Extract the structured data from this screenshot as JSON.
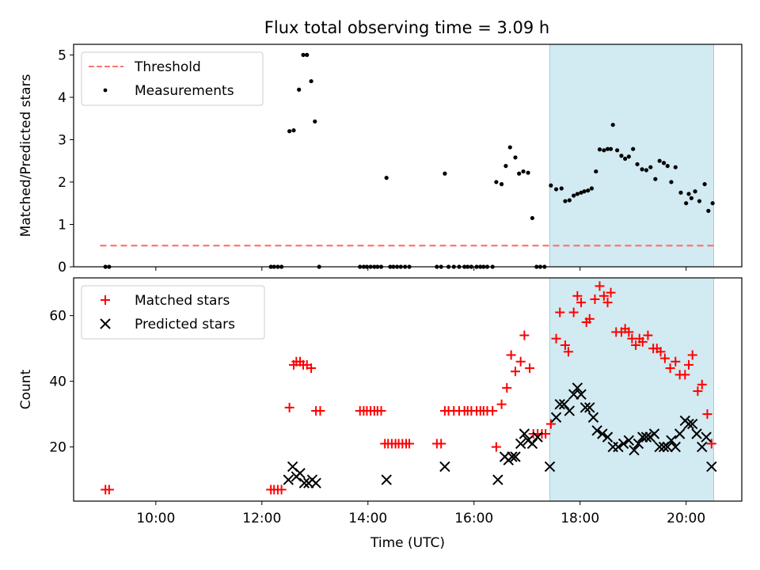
{
  "figure": {
    "title": "Flux total observing time = 3.09 h"
  },
  "colors": {
    "threshold": "#ff7373",
    "measurements": "#000000",
    "matched": "#ff0000",
    "predicted": "#000000",
    "highlight_fill": "#add8e6",
    "highlight_edge": "#9fcfdd"
  },
  "chart_data": [
    {
      "type": "scatter",
      "panel": "top",
      "ylabel": "Matched/Predicted stars",
      "xlabel": "",
      "x_unit": "hours UTC",
      "xlim": [
        8.45,
        21.05
      ],
      "ylim": [
        0,
        5.25
      ],
      "yticks": [
        0,
        1,
        2,
        3,
        4,
        5
      ],
      "highlight_span": [
        17.43,
        20.52
      ],
      "legend_position": "upper left",
      "threshold": {
        "name": "Threshold",
        "value": 0.5,
        "x_range": [
          8.95,
          20.55
        ],
        "style": "dashed"
      },
      "series": [
        {
          "name": "Measurements",
          "marker": "dot",
          "points": [
            [
              9.05,
              0
            ],
            [
              9.12,
              0
            ],
            [
              12.17,
              0
            ],
            [
              12.23,
              0
            ],
            [
              12.3,
              0
            ],
            [
              12.37,
              0
            ],
            [
              12.52,
              3.2
            ],
            [
              12.6,
              3.22
            ],
            [
              12.7,
              4.18
            ],
            [
              12.78,
              5.0
            ],
            [
              12.85,
              5.0
            ],
            [
              12.93,
              4.38
            ],
            [
              13.0,
              3.43
            ],
            [
              13.08,
              0
            ],
            [
              13.85,
              0
            ],
            [
              13.92,
              0
            ],
            [
              13.98,
              0
            ],
            [
              14.05,
              0
            ],
            [
              14.12,
              0
            ],
            [
              14.18,
              0
            ],
            [
              14.25,
              0
            ],
            [
              14.35,
              2.1
            ],
            [
              14.42,
              0
            ],
            [
              14.48,
              0
            ],
            [
              14.55,
              0
            ],
            [
              14.62,
              0
            ],
            [
              14.7,
              0
            ],
            [
              14.78,
              0
            ],
            [
              15.3,
              0
            ],
            [
              15.38,
              0
            ],
            [
              15.45,
              2.2
            ],
            [
              15.52,
              0
            ],
            [
              15.62,
              0
            ],
            [
              15.72,
              0
            ],
            [
              15.82,
              0
            ],
            [
              15.88,
              0
            ],
            [
              15.95,
              0
            ],
            [
              16.05,
              0
            ],
            [
              16.12,
              0
            ],
            [
              16.18,
              0
            ],
            [
              16.25,
              0
            ],
            [
              16.35,
              0
            ],
            [
              16.42,
              2.0
            ],
            [
              16.52,
              1.95
            ],
            [
              16.6,
              2.38
            ],
            [
              16.68,
              2.82
            ],
            [
              16.78,
              2.58
            ],
            [
              16.85,
              2.2
            ],
            [
              16.93,
              2.25
            ],
            [
              17.02,
              2.22
            ],
            [
              17.1,
              1.15
            ],
            [
              17.18,
              0
            ],
            [
              17.25,
              0
            ],
            [
              17.33,
              0
            ],
            [
              17.45,
              1.92
            ],
            [
              17.55,
              1.83
            ],
            [
              17.65,
              1.85
            ],
            [
              17.72,
              1.55
            ],
            [
              17.8,
              1.57
            ],
            [
              17.88,
              1.68
            ],
            [
              17.95,
              1.72
            ],
            [
              18.02,
              1.75
            ],
            [
              18.08,
              1.78
            ],
            [
              18.15,
              1.8
            ],
            [
              18.22,
              1.85
            ],
            [
              18.3,
              2.25
            ],
            [
              18.37,
              2.77
            ],
            [
              18.45,
              2.75
            ],
            [
              18.52,
              2.78
            ],
            [
              18.58,
              2.78
            ],
            [
              18.62,
              3.35
            ],
            [
              18.7,
              2.75
            ],
            [
              18.78,
              2.62
            ],
            [
              18.85,
              2.55
            ],
            [
              18.92,
              2.6
            ],
            [
              19.0,
              2.78
            ],
            [
              19.08,
              2.42
            ],
            [
              19.17,
              2.3
            ],
            [
              19.25,
              2.28
            ],
            [
              19.33,
              2.35
            ],
            [
              19.42,
              2.07
            ],
            [
              19.5,
              2.5
            ],
            [
              19.58,
              2.45
            ],
            [
              19.65,
              2.38
            ],
            [
              19.72,
              2.0
            ],
            [
              19.8,
              2.35
            ],
            [
              19.9,
              1.75
            ],
            [
              20.0,
              1.5
            ],
            [
              20.05,
              1.72
            ],
            [
              20.1,
              1.62
            ],
            [
              20.17,
              1.78
            ],
            [
              20.25,
              1.55
            ],
            [
              20.35,
              1.95
            ],
            [
              20.42,
              1.32
            ],
            [
              20.5,
              1.5
            ]
          ]
        }
      ]
    },
    {
      "type": "scatter",
      "panel": "bottom",
      "ylabel": "Count",
      "xlabel": "Time (UTC)",
      "x_unit": "hours UTC",
      "xlim": [
        8.45,
        21.05
      ],
      "ylim": [
        3.5,
        71.5
      ],
      "yticks": [
        20,
        40,
        60
      ],
      "xticks": [
        10,
        12,
        14,
        16,
        18,
        20
      ],
      "xtick_labels": [
        "10:00",
        "12:00",
        "14:00",
        "16:00",
        "18:00",
        "20:00"
      ],
      "highlight_span": [
        17.43,
        20.52
      ],
      "legend_position": "upper left",
      "series": [
        {
          "name": "Matched stars",
          "marker": "plus",
          "points": [
            [
              9.05,
              7
            ],
            [
              9.12,
              7
            ],
            [
              12.17,
              7
            ],
            [
              12.23,
              7
            ],
            [
              12.3,
              7
            ],
            [
              12.37,
              7
            ],
            [
              12.52,
              32
            ],
            [
              12.6,
              45
            ],
            [
              12.65,
              46
            ],
            [
              12.72,
              46
            ],
            [
              12.78,
              45
            ],
            [
              12.85,
              45
            ],
            [
              12.93,
              44
            ],
            [
              13.02,
              31
            ],
            [
              13.1,
              31
            ],
            [
              13.85,
              31
            ],
            [
              13.92,
              31
            ],
            [
              13.98,
              31
            ],
            [
              14.05,
              31
            ],
            [
              14.12,
              31
            ],
            [
              14.18,
              31
            ],
            [
              14.25,
              31
            ],
            [
              14.32,
              21
            ],
            [
              14.38,
              21
            ],
            [
              14.45,
              21
            ],
            [
              14.52,
              21
            ],
            [
              14.58,
              21
            ],
            [
              14.65,
              21
            ],
            [
              14.72,
              21
            ],
            [
              14.78,
              21
            ],
            [
              15.3,
              21
            ],
            [
              15.38,
              21
            ],
            [
              15.45,
              31
            ],
            [
              15.52,
              31
            ],
            [
              15.62,
              31
            ],
            [
              15.72,
              31
            ],
            [
              15.82,
              31
            ],
            [
              15.88,
              31
            ],
            [
              15.95,
              31
            ],
            [
              16.05,
              31
            ],
            [
              16.12,
              31
            ],
            [
              16.18,
              31
            ],
            [
              16.25,
              31
            ],
            [
              16.35,
              31
            ],
            [
              16.42,
              20
            ],
            [
              16.52,
              33
            ],
            [
              16.62,
              38
            ],
            [
              16.7,
              48
            ],
            [
              16.78,
              43
            ],
            [
              16.88,
              46
            ],
            [
              16.95,
              54
            ],
            [
              17.05,
              44
            ],
            [
              17.12,
              24
            ],
            [
              17.2,
              24
            ],
            [
              17.28,
              24
            ],
            [
              17.35,
              24
            ],
            [
              17.45,
              27
            ],
            [
              17.55,
              53
            ],
            [
              17.62,
              61
            ],
            [
              17.72,
              51
            ],
            [
              17.78,
              49
            ],
            [
              17.88,
              61
            ],
            [
              17.95,
              66
            ],
            [
              18.02,
              64
            ],
            [
              18.12,
              58
            ],
            [
              18.18,
              59
            ],
            [
              18.28,
              65
            ],
            [
              18.37,
              69
            ],
            [
              18.45,
              66
            ],
            [
              18.52,
              64
            ],
            [
              18.58,
              67
            ],
            [
              18.68,
              55
            ],
            [
              18.78,
              55
            ],
            [
              18.85,
              56
            ],
            [
              18.92,
              55
            ],
            [
              18.98,
              53
            ],
            [
              19.05,
              51
            ],
            [
              19.12,
              53
            ],
            [
              19.18,
              52
            ],
            [
              19.28,
              54
            ],
            [
              19.38,
              50
            ],
            [
              19.45,
              50
            ],
            [
              19.52,
              49
            ],
            [
              19.6,
              47
            ],
            [
              19.7,
              44
            ],
            [
              19.8,
              46
            ],
            [
              19.88,
              42
            ],
            [
              19.98,
              42
            ],
            [
              20.05,
              45
            ],
            [
              20.12,
              48
            ],
            [
              20.22,
              37
            ],
            [
              20.3,
              39
            ],
            [
              20.4,
              30
            ],
            [
              20.48,
              21
            ]
          ]
        },
        {
          "name": "Predicted stars",
          "marker": "x",
          "points": [
            [
              12.5,
              10
            ],
            [
              12.58,
              14
            ],
            [
              12.65,
              11
            ],
            [
              12.72,
              12
            ],
            [
              12.8,
              9
            ],
            [
              12.88,
              9
            ],
            [
              12.95,
              10
            ],
            [
              13.02,
              9
            ],
            [
              14.35,
              10
            ],
            [
              15.45,
              14
            ],
            [
              16.45,
              10
            ],
            [
              16.58,
              17
            ],
            [
              16.65,
              16
            ],
            [
              16.72,
              17
            ],
            [
              16.78,
              17
            ],
            [
              16.88,
              21
            ],
            [
              16.95,
              24
            ],
            [
              17.02,
              22
            ],
            [
              17.1,
              21
            ],
            [
              17.2,
              23
            ],
            [
              17.43,
              14
            ],
            [
              17.55,
              29
            ],
            [
              17.62,
              33
            ],
            [
              17.7,
              33
            ],
            [
              17.8,
              31
            ],
            [
              17.88,
              36
            ],
            [
              17.95,
              38
            ],
            [
              18.02,
              36
            ],
            [
              18.1,
              32
            ],
            [
              18.18,
              32
            ],
            [
              18.25,
              29
            ],
            [
              18.32,
              25
            ],
            [
              18.42,
              24
            ],
            [
              18.52,
              23
            ],
            [
              18.62,
              20
            ],
            [
              18.72,
              20
            ],
            [
              18.82,
              21
            ],
            [
              18.92,
              22
            ],
            [
              19.02,
              19
            ],
            [
              19.1,
              21
            ],
            [
              19.18,
              23
            ],
            [
              19.25,
              23
            ],
            [
              19.32,
              23
            ],
            [
              19.4,
              24
            ],
            [
              19.5,
              20
            ],
            [
              19.58,
              20
            ],
            [
              19.65,
              20
            ],
            [
              19.72,
              22
            ],
            [
              19.8,
              20
            ],
            [
              19.88,
              24
            ],
            [
              19.98,
              28
            ],
            [
              20.05,
              27
            ],
            [
              20.12,
              27
            ],
            [
              20.2,
              24
            ],
            [
              20.3,
              20
            ],
            [
              20.38,
              23
            ],
            [
              20.48,
              14
            ]
          ]
        }
      ]
    }
  ]
}
